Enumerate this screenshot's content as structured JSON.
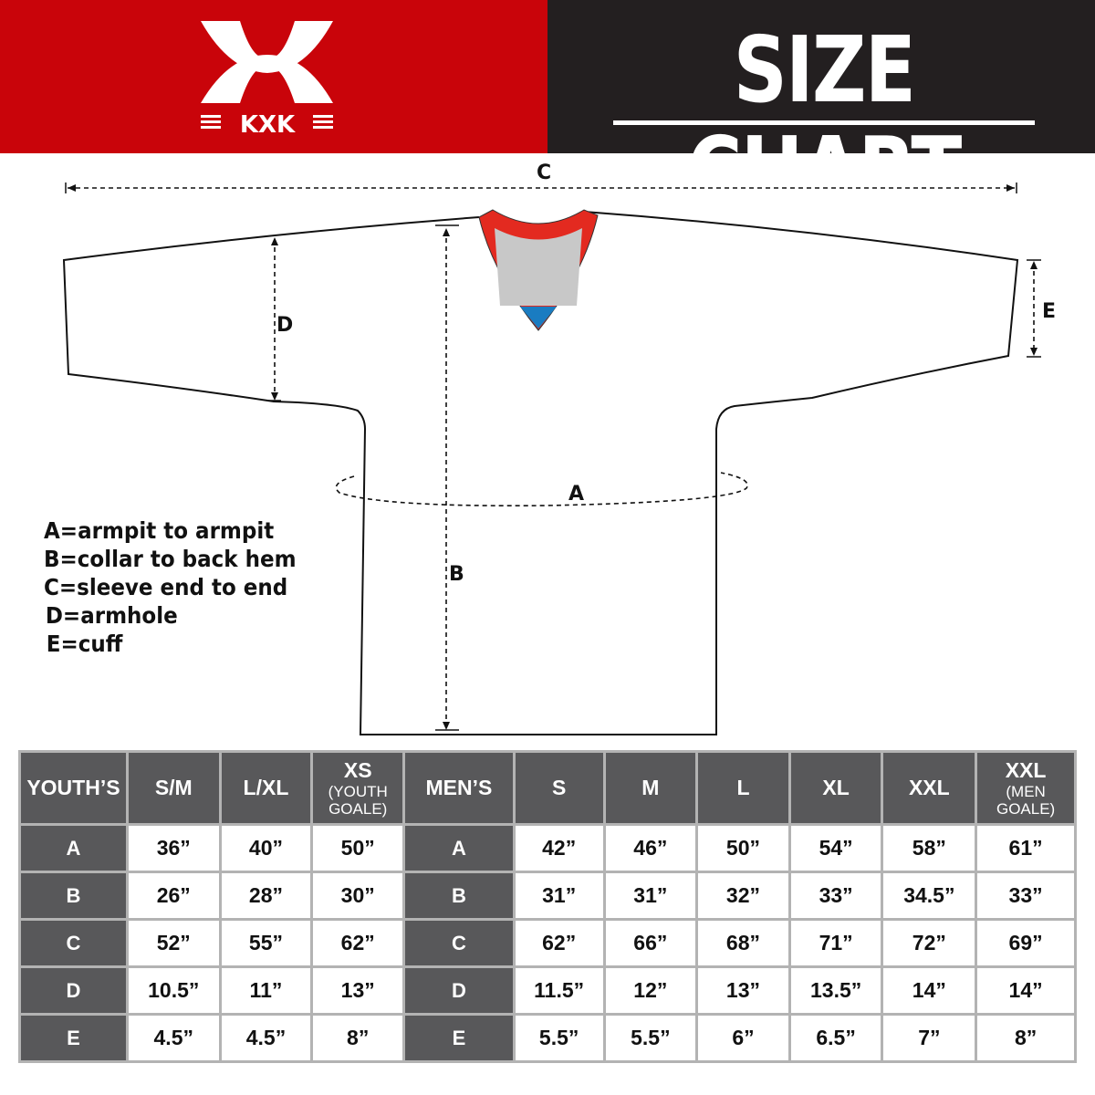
{
  "brand": {
    "logo_text": "KXK",
    "color": "#c9040a"
  },
  "header": {
    "title": "SIZE CHART"
  },
  "diagram": {
    "labels": {
      "a": "A",
      "b": "B",
      "c": "C",
      "d": "D",
      "e": "E"
    },
    "colors": {
      "collar": "#e32a20",
      "neck": "#c8c8c8",
      "tag": "#1a7cc1"
    }
  },
  "legend": [
    "A=armpit to armpit",
    "B=collar to back hem",
    "C=sleeve end to end",
    "D=armhole",
    "E=cuff"
  ],
  "table": {
    "youth": {
      "header": "YOUTH’S",
      "columns": [
        {
          "label": "S/M",
          "sub": ""
        },
        {
          "label": "L/XL",
          "sub": ""
        },
        {
          "label": "XS",
          "sub": "(YOUTH GOALE)"
        }
      ],
      "rows": [
        {
          "key": "A",
          "values": [
            "36”",
            "40”",
            "50”"
          ]
        },
        {
          "key": "B",
          "values": [
            "26”",
            "28”",
            "30”"
          ]
        },
        {
          "key": "C",
          "values": [
            "52”",
            "55”",
            "62”"
          ]
        },
        {
          "key": "D",
          "values": [
            "10.5”",
            "11”",
            "13”"
          ]
        },
        {
          "key": "E",
          "values": [
            "4.5”",
            "4.5”",
            "8”"
          ]
        }
      ]
    },
    "men": {
      "header": "MEN’S",
      "columns": [
        {
          "label": "S",
          "sub": ""
        },
        {
          "label": "M",
          "sub": ""
        },
        {
          "label": "L",
          "sub": ""
        },
        {
          "label": "XL",
          "sub": ""
        },
        {
          "label": "XXL",
          "sub": ""
        },
        {
          "label": "XXL",
          "sub": "(MEN GOALE)"
        }
      ],
      "rows": [
        {
          "key": "A",
          "values": [
            "42”",
            "46”",
            "50”",
            "54”",
            "58”",
            "61”"
          ]
        },
        {
          "key": "B",
          "values": [
            "31”",
            "31”",
            "32”",
            "33”",
            "34.5”",
            "33”"
          ]
        },
        {
          "key": "C",
          "values": [
            "62”",
            "66”",
            "68”",
            "71”",
            "72”",
            "69”"
          ]
        },
        {
          "key": "D",
          "values": [
            "11.5”",
            "12”",
            "13”",
            "13.5”",
            "14”",
            "14”"
          ]
        },
        {
          "key": "E",
          "values": [
            "5.5”",
            "5.5”",
            "6”",
            "6.5”",
            "7”",
            "8”"
          ]
        }
      ]
    }
  }
}
